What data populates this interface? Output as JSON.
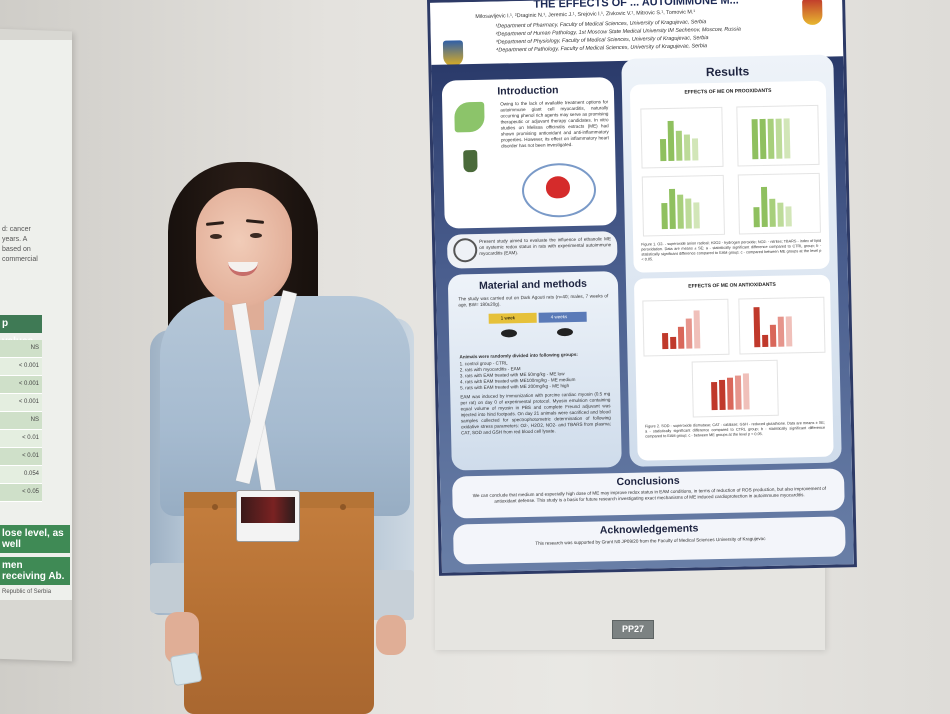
{
  "left_poster": {
    "snippet_lines": [
      "d: cancer",
      "years. A",
      "based on",
      "commercial"
    ],
    "table_header": "p values",
    "p_values": [
      "NS",
      "< 0.001",
      "< 0.001",
      "< 0.001",
      "NS",
      "< 0.01",
      "< 0.01",
      "0.054",
      "< 0.05"
    ],
    "banner_1": "lose level, as well",
    "banner_2": "men receiving Ab.",
    "footer": "Republic of Serbia"
  },
  "poster": {
    "title": "THE EFFECTS OF ... AUTOIMMUNE M...",
    "authors": "Milosavljevic I.¹, ²Draginic N.¹, Jeremic J.¹, Srejovic I.¹, Zivkovic V.¹, Mitrovic S.¹, Tomovic M.¹",
    "affiliations": [
      "¹Department of Pharmacy, Faculty of Medical Sciences, University of Kragujevac, Serbia",
      "²Department of Human Pathology, 1st Moscow State Medical University IM Sechenov, Moscow, Russia",
      "³Department of Physiology, Faculty of Medical Sciences, University of Kragujevac, Serbia",
      "⁴Department of Pathology, Faculty of Medical Sciences, University of Kragujevac, Serbia"
    ],
    "introduction": {
      "heading": "Introduction",
      "text": "Owing to the lack of available treatment options for autoimmune giant cell myocarditis, naturally occurring phenol rich agents may serve as promising therapeutic or adjuvant therapy candidates. In vitro studies on Melissa officinalis extracts (ME) had shown promising antioxidant and anti-inflammatory properties. However, its effect on inflammatory heart disorder has not been investigated."
    },
    "aim_text": "Present study aimed to evaluate the influence of ethanolic ME on systemic redox status in rats with experimental autoimmune myocarditis (EAM).",
    "methods": {
      "heading": "Material and methods",
      "intro": "The study was carried out on Dark Agouti rats (n=40; males, 7 weeks of age, BW= 180±20g).",
      "stage_1": "1 week",
      "stage_2": "4 weeks",
      "groups_title": "Animals were randomly divided into following groups:",
      "groups": [
        "1. control group - CTRL",
        "2. rats with myocarditis - EAM",
        "3. rats with EAM treated with ME 50mg/kg - ME low",
        "4. rats with EAM treated with ME100mg/kg - ME medium",
        "5. rats with EAM treated with ME 200mg/kg - ME high"
      ],
      "text": "EAM was induced by immunization with porcine cardiac myosin (0.5 mg per rat) on day 0 of experimental protocol. Myosin emulsion containing equal volume of myosin in PBS and complete Freund adjuvant was injected into hind footpads. On day 21 animals were sacrificed and blood samples collected for spectrophotometric determination of following oxidative stress parameters: O2-, H2O2, NO2- and TBARS from plasma; CAT, SOD and GSH from red blood cell lysate."
    },
    "results": {
      "heading": "Results",
      "prooxidants_title": "EFFECTS OF ME ON PROOXIDANTS",
      "prooxidants_caption": "Figure 1. O2- - superoxide anion radical; H2O2 - hydrogen peroxide; NO2- - nitrites; TBARS - index of lipid peroxidation. Data are means ± SE; a - statistically significant difference compared to CTRL group; b - statistically significant difference compared to EAM group; c - compared between ME groups at the level p < 0.05.",
      "antioxidants_title": "EFFECTS OF ME ON ANTIOXIDANTS",
      "antioxidants_caption": "Figure 2. SOD - superoxide dismutase; CAT - catalase; GSH - reduced glutathione. Data are means ± SE; a - statistically significant difference compared to CTRL group; b - statistically significant difference compared to EAM group; c - between ME groups at the level p < 0.05."
    },
    "conclusions": {
      "heading": "Conclusions",
      "text": "We can conclude that medium and especially high dose of ME may improve redox status in EAM conditions, in terms of reduction of ROS production, but also improvement of antioxidant defense. This study is a basis for future research investigating exact mechanisms of ME induced cardioprotection in autoimmune myocarditis."
    },
    "acknowledgements": {
      "heading": "Acknowledgements",
      "text": "This research was supported by Grant N0 JP09/20 from the Faculty of Medical Sciences University of Kragujevac"
    }
  },
  "poster_label": "PP27",
  "colors": {
    "navy": "#2d3a66",
    "green_bars": "#8fc05f",
    "red_bars": "#c0392b"
  }
}
